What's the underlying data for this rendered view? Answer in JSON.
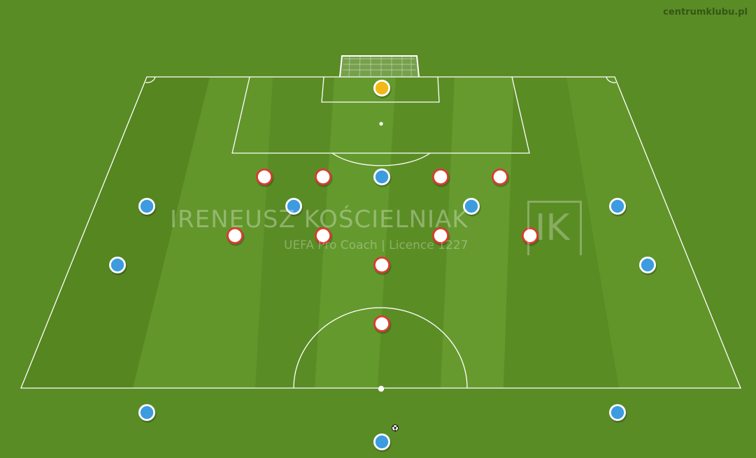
{
  "site_label": "centrumklubu.pl",
  "watermark": {
    "name": "IRENEUSZ KOŚCIELNIAK",
    "subtitle": "UEFA Pro Coach   |   Licence 1227",
    "logo_text": "IK"
  },
  "colors": {
    "grass": "#5a8c26",
    "stripe_dark": "#52831f",
    "stripe_light": "#65982d",
    "lines": "#ffffff",
    "team_blue": "#3d9be0",
    "team_red_ring": "#d93b30",
    "team_red_fill": "#ffffff",
    "goalkeeper": "#f2b818"
  },
  "players": {
    "goalkeeper": {
      "role": "goalkeeper",
      "team": "yellow"
    },
    "blue": {
      "team": "blue",
      "count": 10
    },
    "red": {
      "team": "white-red",
      "count": 10
    }
  },
  "ball": {
    "icon": "soccer-ball-icon"
  }
}
